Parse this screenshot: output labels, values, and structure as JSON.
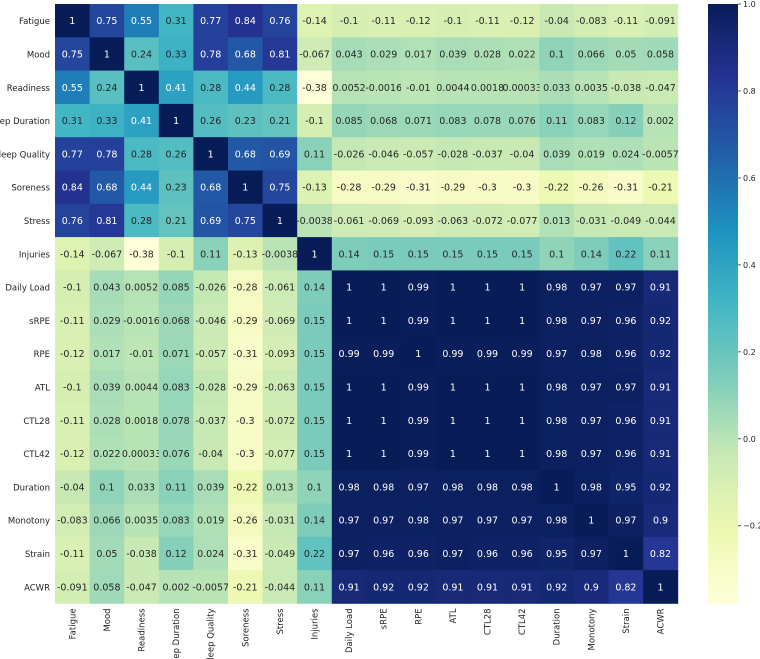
{
  "chart_data": {
    "type": "heatmap",
    "title": "",
    "xlabel": "",
    "ylabel": "",
    "colormap": "YlGnBu",
    "colorbar": {
      "vmin": -0.38,
      "vmax": 1.0,
      "ticks": [
        "1.0",
        "0.8",
        "0.6",
        "0.4",
        "0.2",
        "0.0",
        "−0.2"
      ]
    },
    "labels": [
      "Fatigue",
      "Mood",
      "Readiness",
      "Sleep Duration",
      "Sleep Quality",
      "Soreness",
      "Stress",
      "Injuries",
      "Daily Load",
      "sRPE",
      "RPE",
      "ATL",
      "CTL28",
      "CTL42",
      "Duration",
      "Monotony",
      "Strain",
      "ACWR"
    ],
    "values": [
      [
        1,
        0.75,
        0.55,
        0.31,
        0.77,
        0.84,
        0.76,
        -0.14,
        -0.1,
        -0.11,
        -0.12,
        -0.1,
        -0.11,
        -0.12,
        -0.04,
        -0.083,
        -0.11,
        -0.091
      ],
      [
        0.75,
        1,
        0.24,
        0.33,
        0.78,
        0.68,
        0.81,
        -0.067,
        0.043,
        0.029,
        0.017,
        0.039,
        0.028,
        0.022,
        0.1,
        0.066,
        0.05,
        0.058
      ],
      [
        0.55,
        0.24,
        1,
        0.41,
        0.28,
        0.44,
        0.28,
        -0.38,
        0.0052,
        -0.0016,
        -0.01,
        0.0044,
        0.0018,
        0.00033,
        0.033,
        0.0035,
        -0.038,
        -0.047
      ],
      [
        0.31,
        0.33,
        0.41,
        1,
        0.26,
        0.23,
        0.21,
        -0.1,
        0.085,
        0.068,
        0.071,
        0.083,
        0.078,
        0.076,
        0.11,
        0.083,
        0.12,
        0.002
      ],
      [
        0.77,
        0.78,
        0.28,
        0.26,
        1,
        0.68,
        0.69,
        0.11,
        -0.026,
        -0.046,
        -0.057,
        -0.028,
        -0.037,
        -0.04,
        0.039,
        0.019,
        0.024,
        -0.0057
      ],
      [
        0.84,
        0.68,
        0.44,
        0.23,
        0.68,
        1,
        0.75,
        -0.13,
        -0.28,
        -0.29,
        -0.31,
        -0.29,
        -0.3,
        -0.3,
        -0.22,
        -0.26,
        -0.31,
        -0.21
      ],
      [
        0.76,
        0.81,
        0.28,
        0.21,
        0.69,
        0.75,
        1,
        -0.0038,
        -0.061,
        -0.069,
        -0.093,
        -0.063,
        -0.072,
        -0.077,
        0.013,
        -0.031,
        -0.049,
        -0.044
      ],
      [
        -0.14,
        -0.067,
        -0.38,
        -0.1,
        0.11,
        -0.13,
        -0.0038,
        1,
        0.14,
        0.15,
        0.15,
        0.15,
        0.15,
        0.15,
        0.1,
        0.14,
        0.22,
        0.11
      ],
      [
        -0.1,
        0.043,
        0.0052,
        0.085,
        -0.026,
        -0.28,
        -0.061,
        0.14,
        1,
        1,
        0.99,
        1,
        1,
        1,
        0.98,
        0.97,
        0.97,
        0.91
      ],
      [
        -0.11,
        0.029,
        -0.0016,
        0.068,
        -0.046,
        -0.29,
        -0.069,
        0.15,
        1,
        1,
        0.99,
        1,
        1,
        1,
        0.98,
        0.97,
        0.96,
        0.92
      ],
      [
        -0.12,
        0.017,
        -0.01,
        0.071,
        -0.057,
        -0.31,
        -0.093,
        0.15,
        0.99,
        0.99,
        1,
        0.99,
        0.99,
        0.99,
        0.97,
        0.98,
        0.96,
        0.92
      ],
      [
        -0.1,
        0.039,
        0.0044,
        0.083,
        -0.028,
        -0.29,
        -0.063,
        0.15,
        1,
        1,
        0.99,
        1,
        1,
        1,
        0.98,
        0.97,
        0.97,
        0.91
      ],
      [
        -0.11,
        0.028,
        0.0018,
        0.078,
        -0.037,
        -0.3,
        -0.072,
        0.15,
        1,
        1,
        0.99,
        1,
        1,
        1,
        0.98,
        0.97,
        0.96,
        0.91
      ],
      [
        -0.12,
        0.022,
        0.00033,
        0.076,
        -0.04,
        -0.3,
        -0.077,
        0.15,
        1,
        1,
        0.99,
        1,
        1,
        1,
        0.98,
        0.97,
        0.96,
        0.91
      ],
      [
        -0.04,
        0.1,
        0.033,
        0.11,
        0.039,
        -0.22,
        0.013,
        0.1,
        0.98,
        0.98,
        0.97,
        0.98,
        0.98,
        0.98,
        1,
        0.98,
        0.95,
        0.92
      ],
      [
        -0.083,
        0.066,
        0.0035,
        0.083,
        0.019,
        -0.26,
        -0.031,
        0.14,
        0.97,
        0.97,
        0.98,
        0.97,
        0.97,
        0.97,
        0.98,
        1,
        0.97,
        0.9
      ],
      [
        -0.11,
        0.05,
        -0.038,
        0.12,
        0.024,
        -0.31,
        -0.049,
        0.22,
        0.97,
        0.96,
        0.96,
        0.97,
        0.96,
        0.96,
        0.95,
        0.97,
        1,
        0.82
      ],
      [
        -0.091,
        0.058,
        -0.047,
        0.002,
        -0.0057,
        -0.21,
        -0.044,
        0.11,
        0.91,
        0.92,
        0.92,
        0.91,
        0.91,
        0.91,
        0.92,
        0.9,
        0.82,
        1
      ]
    ]
  }
}
